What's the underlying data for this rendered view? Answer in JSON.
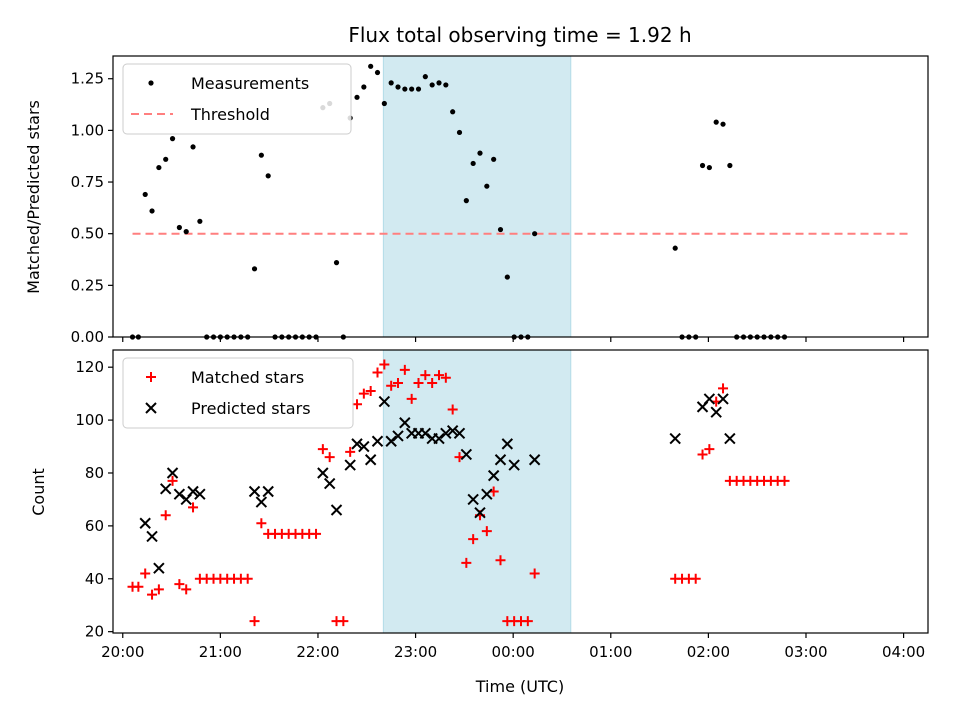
{
  "chart_data": {
    "title": "Flux total observing time = 1.92 h",
    "xlabel": "Time (UTC)",
    "x_tick_labels": [
      "20:00",
      "21:00",
      "22:00",
      "23:00",
      "00:00",
      "01:00",
      "02:00",
      "03:00",
      "04:00"
    ],
    "x_tick_hours": [
      0,
      1,
      2,
      3,
      4,
      5,
      6,
      7,
      8
    ],
    "x_hours_since": "20:00",
    "xlim_hours": [
      -0.1,
      8.25
    ],
    "shaded_interval_hours": [
      2.67,
      4.59
    ],
    "shade_color": "#add8e6",
    "panels": [
      {
        "type": "scatter",
        "ylabel": "Matched/Predicted stars",
        "ylim": [
          0,
          1.36
        ],
        "y_ticks": [
          0.0,
          0.25,
          0.5,
          0.75,
          1.0,
          1.25
        ],
        "y_tick_labels": [
          "0.00",
          "0.25",
          "0.50",
          "0.75",
          "1.00",
          "1.25"
        ],
        "legend_position": "upper-left",
        "threshold": {
          "name": "Threshold",
          "value": 0.5,
          "x_range_hours": [
            0.1,
            8.05
          ],
          "color": "#ff7f7f"
        },
        "series": [
          {
            "name": "Measurements",
            "marker": "dot",
            "color": "#000000",
            "points": [
              [
                0.1,
                0
              ],
              [
                0.16,
                0
              ],
              [
                0.23,
                0.69
              ],
              [
                0.3,
                0.61
              ],
              [
                0.37,
                0.82
              ],
              [
                0.44,
                0.86
              ],
              [
                0.51,
                0.96
              ],
              [
                0.58,
                0.53
              ],
              [
                0.65,
                0.51
              ],
              [
                0.72,
                0.92
              ],
              [
                0.79,
                0.56
              ],
              [
                0.86,
                0
              ],
              [
                0.93,
                0
              ],
              [
                1.0,
                0
              ],
              [
                1.07,
                0
              ],
              [
                1.14,
                0
              ],
              [
                1.21,
                0
              ],
              [
                1.28,
                0
              ],
              [
                1.35,
                0.33
              ],
              [
                1.42,
                0.88
              ],
              [
                1.49,
                0.78
              ],
              [
                1.56,
                0
              ],
              [
                1.63,
                0
              ],
              [
                1.7,
                0
              ],
              [
                1.77,
                0
              ],
              [
                1.84,
                0
              ],
              [
                1.91,
                0
              ],
              [
                1.98,
                0
              ],
              [
                2.05,
                1.11
              ],
              [
                2.12,
                1.13
              ],
              [
                2.19,
                0.36
              ],
              [
                2.26,
                0
              ],
              [
                2.33,
                1.06
              ],
              [
                2.4,
                1.16
              ],
              [
                2.47,
                1.21
              ],
              [
                2.54,
                1.31
              ],
              [
                2.61,
                1.28
              ],
              [
                2.68,
                1.13
              ],
              [
                2.75,
                1.23
              ],
              [
                2.82,
                1.21
              ],
              [
                2.89,
                1.2
              ],
              [
                2.96,
                1.2
              ],
              [
                3.03,
                1.2
              ],
              [
                3.1,
                1.26
              ],
              [
                3.17,
                1.22
              ],
              [
                3.24,
                1.23
              ],
              [
                3.31,
                1.22
              ],
              [
                3.38,
                1.09
              ],
              [
                3.45,
                0.99
              ],
              [
                3.52,
                0.66
              ],
              [
                3.59,
                0.84
              ],
              [
                3.66,
                0.89
              ],
              [
                3.73,
                0.73
              ],
              [
                3.8,
                0.86
              ],
              [
                3.87,
                0.52
              ],
              [
                3.94,
                0.29
              ],
              [
                4.01,
                0
              ],
              [
                4.08,
                0
              ],
              [
                4.15,
                0
              ],
              [
                4.22,
                0.5
              ],
              [
                5.66,
                0.43
              ],
              [
                5.73,
                0
              ],
              [
                5.8,
                0
              ],
              [
                5.87,
                0
              ],
              [
                5.94,
                0.83
              ],
              [
                6.01,
                0.82
              ],
              [
                6.08,
                1.04
              ],
              [
                6.15,
                1.03
              ],
              [
                6.22,
                0.83
              ],
              [
                6.29,
                0
              ],
              [
                6.36,
                0
              ],
              [
                6.43,
                0
              ],
              [
                6.5,
                0
              ],
              [
                6.57,
                0
              ],
              [
                6.64,
                0
              ],
              [
                6.71,
                0
              ],
              [
                6.78,
                0
              ]
            ]
          }
        ]
      },
      {
        "type": "scatter",
        "ylabel": "Count",
        "ylim": [
          19.5,
          126.5
        ],
        "y_ticks": [
          20,
          40,
          60,
          80,
          100,
          120
        ],
        "y_tick_labels": [
          "20",
          "40",
          "60",
          "80",
          "100",
          "120"
        ],
        "legend_position": "upper-left",
        "series": [
          {
            "name": "Matched stars",
            "marker": "plus",
            "color": "#ff0000",
            "points": [
              [
                0.1,
                37
              ],
              [
                0.16,
                37
              ],
              [
                0.23,
                42
              ],
              [
                0.3,
                34
              ],
              [
                0.37,
                36
              ],
              [
                0.44,
                64
              ],
              [
                0.51,
                77
              ],
              [
                0.58,
                38
              ],
              [
                0.65,
                36
              ],
              [
                0.72,
                67
              ],
              [
                0.79,
                40
              ],
              [
                0.86,
                40
              ],
              [
                0.93,
                40
              ],
              [
                1.0,
                40
              ],
              [
                1.07,
                40
              ],
              [
                1.14,
                40
              ],
              [
                1.21,
                40
              ],
              [
                1.28,
                40
              ],
              [
                1.35,
                24
              ],
              [
                1.42,
                61
              ],
              [
                1.49,
                57
              ],
              [
                1.56,
                57
              ],
              [
                1.63,
                57
              ],
              [
                1.7,
                57
              ],
              [
                1.77,
                57
              ],
              [
                1.84,
                57
              ],
              [
                1.91,
                57
              ],
              [
                1.98,
                57
              ],
              [
                2.05,
                89
              ],
              [
                2.12,
                86
              ],
              [
                2.19,
                24
              ],
              [
                2.26,
                24
              ],
              [
                2.33,
                88
              ],
              [
                2.4,
                106
              ],
              [
                2.47,
                110
              ],
              [
                2.54,
                111
              ],
              [
                2.61,
                118
              ],
              [
                2.68,
                121
              ],
              [
                2.75,
                113
              ],
              [
                2.82,
                114
              ],
              [
                2.89,
                119
              ],
              [
                2.96,
                108
              ],
              [
                3.03,
                114
              ],
              [
                3.1,
                117
              ],
              [
                3.17,
                114
              ],
              [
                3.24,
                117
              ],
              [
                3.31,
                116
              ],
              [
                3.38,
                104
              ],
              [
                3.45,
                86
              ],
              [
                3.52,
                46
              ],
              [
                3.59,
                55
              ],
              [
                3.66,
                64
              ],
              [
                3.73,
                58
              ],
              [
                3.8,
                73
              ],
              [
                3.87,
                47
              ],
              [
                3.94,
                24
              ],
              [
                4.01,
                24
              ],
              [
                4.08,
                24
              ],
              [
                4.15,
                24
              ],
              [
                4.22,
                42
              ],
              [
                5.66,
                40
              ],
              [
                5.73,
                40
              ],
              [
                5.8,
                40
              ],
              [
                5.87,
                40
              ],
              [
                5.94,
                87
              ],
              [
                6.01,
                89
              ],
              [
                6.08,
                107
              ],
              [
                6.15,
                112
              ],
              [
                6.22,
                77
              ],
              [
                6.29,
                77
              ],
              [
                6.36,
                77
              ],
              [
                6.43,
                77
              ],
              [
                6.5,
                77
              ],
              [
                6.57,
                77
              ],
              [
                6.64,
                77
              ],
              [
                6.71,
                77
              ],
              [
                6.78,
                77
              ]
            ]
          },
          {
            "name": "Predicted stars",
            "marker": "x",
            "color": "#000000",
            "points": [
              [
                0.23,
                61
              ],
              [
                0.3,
                56
              ],
              [
                0.37,
                44
              ],
              [
                0.44,
                74
              ],
              [
                0.51,
                80
              ],
              [
                0.58,
                72
              ],
              [
                0.65,
                70
              ],
              [
                0.72,
                73
              ],
              [
                0.79,
                72
              ],
              [
                1.35,
                73
              ],
              [
                1.42,
                69
              ],
              [
                1.49,
                73
              ],
              [
                2.05,
                80
              ],
              [
                2.12,
                76
              ],
              [
                2.19,
                66
              ],
              [
                2.33,
                83
              ],
              [
                2.4,
                91
              ],
              [
                2.47,
                90
              ],
              [
                2.54,
                85
              ],
              [
                2.61,
                92
              ],
              [
                2.68,
                107
              ],
              [
                2.75,
                92
              ],
              [
                2.82,
                94
              ],
              [
                2.89,
                99
              ],
              [
                2.96,
                95
              ],
              [
                3.03,
                95
              ],
              [
                3.1,
                95
              ],
              [
                3.17,
                93
              ],
              [
                3.24,
                93
              ],
              [
                3.31,
                95
              ],
              [
                3.38,
                96
              ],
              [
                3.45,
                95
              ],
              [
                3.52,
                87
              ],
              [
                3.59,
                70
              ],
              [
                3.66,
                65
              ],
              [
                3.73,
                72
              ],
              [
                3.8,
                79
              ],
              [
                3.87,
                85
              ],
              [
                3.94,
                91
              ],
              [
                4.01,
                83
              ],
              [
                4.22,
                85
              ],
              [
                5.66,
                93
              ],
              [
                5.94,
                105
              ],
              [
                6.01,
                108
              ],
              [
                6.08,
                103
              ],
              [
                6.15,
                108
              ],
              [
                6.22,
                93
              ]
            ]
          }
        ]
      }
    ]
  }
}
